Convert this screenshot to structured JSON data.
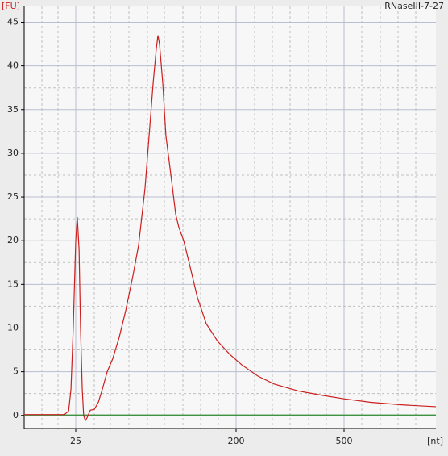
{
  "chart_data": {
    "type": "line",
    "title": "RNaseIII-7-27",
    "y_label": "[FU]",
    "x_label": "[nt]",
    "series": [
      {
        "name": "RNaseIII-7-27",
        "color": "#cc1f1f",
        "x": [
          12.8,
          21.6,
          22.8,
          23.5,
          24.2,
          25,
          25.5,
          26.1,
          26.6,
          27.2,
          27.7,
          28.3,
          28.9,
          30.2,
          31.8,
          33.5,
          35.3,
          37.6,
          40.4,
          44.0,
          47.8,
          52.5,
          56.5,
          61.4,
          65.3,
          68.2,
          71.1,
          72.6,
          74.1,
          77.3,
          80.5,
          85.9,
          91.4,
          95.3,
          101.4,
          110.2,
          121.1,
          135.8,
          157.3,
          184,
          209.7,
          240.6,
          276,
          339,
          416,
          500,
          627,
          824,
          1089
        ],
        "values": [
          0.1,
          0.1,
          0.5,
          3,
          10,
          20,
          22.7,
          19,
          10,
          3,
          0,
          -0.6,
          -0.3,
          0.6,
          0.7,
          1.5,
          3,
          5,
          6.5,
          9,
          12,
          16,
          19.5,
          26,
          33,
          38,
          42,
          43.5,
          42.5,
          38,
          32,
          27.5,
          23,
          21.5,
          20,
          17,
          13.5,
          10.5,
          8.5,
          7,
          5.8,
          4.5,
          3.6,
          2.8,
          2.3,
          1.9,
          1.5,
          1.2,
          1.0
        ]
      },
      {
        "name": "baseline",
        "color": "#2e8b2e",
        "x": [
          12.8,
          1089
        ],
        "values": [
          0.05,
          0.05
        ]
      }
    ],
    "xlim": [
      12.8,
      1089
    ],
    "xticks": [
      25,
      200,
      500
    ],
    "ylim": [
      -1.5,
      46.8
    ],
    "yticks": [
      0,
      5,
      10,
      15,
      20,
      25,
      30,
      35,
      40,
      45
    ],
    "grid": true
  }
}
